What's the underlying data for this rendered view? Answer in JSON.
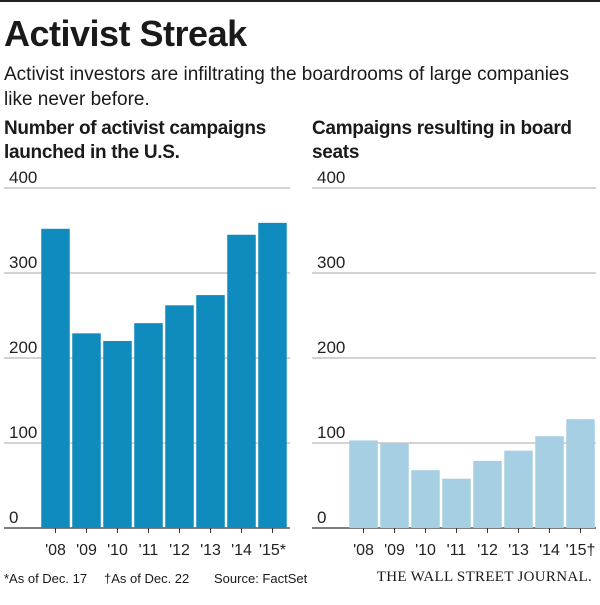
{
  "header": {
    "title": "Activist Streak",
    "subtitle": "Activist investors are infiltrating the boardrooms of large companies like never before."
  },
  "footer": {
    "note1": "*As of Dec. 17",
    "note2": "†As of Dec. 22",
    "source": "Source: FactSet",
    "brand": "THE WALL STREET JOURNAL."
  },
  "colors": {
    "left_bar": "#0f8bbd",
    "right_bar": "#a7cfe3",
    "grid": "#8a8a8a"
  },
  "chart_data": [
    {
      "type": "bar",
      "title": "Number of activist campaigns launched in the U.S.",
      "categories": [
        "'08",
        "'09",
        "'10",
        "'11",
        "'12",
        "'13",
        "'14",
        "'15*"
      ],
      "values": [
        352,
        229,
        220,
        241,
        262,
        274,
        345,
        359
      ],
      "ylim": [
        0,
        400
      ],
      "yticks": [
        "0",
        "100",
        "200",
        "300",
        "400"
      ],
      "xlabel": "",
      "ylabel": "",
      "grid": true
    },
    {
      "type": "bar",
      "title": "Campaigns resulting in board seats",
      "categories": [
        "'08",
        "'09",
        "'10",
        "'11",
        "'12",
        "'13",
        "'14",
        "'15†"
      ],
      "values": [
        103,
        100,
        68,
        58,
        79,
        91,
        108,
        128
      ],
      "ylim": [
        0,
        400
      ],
      "yticks": [
        "0",
        "100",
        "200",
        "300",
        "400"
      ],
      "xlabel": "",
      "ylabel": "",
      "grid": true
    }
  ]
}
